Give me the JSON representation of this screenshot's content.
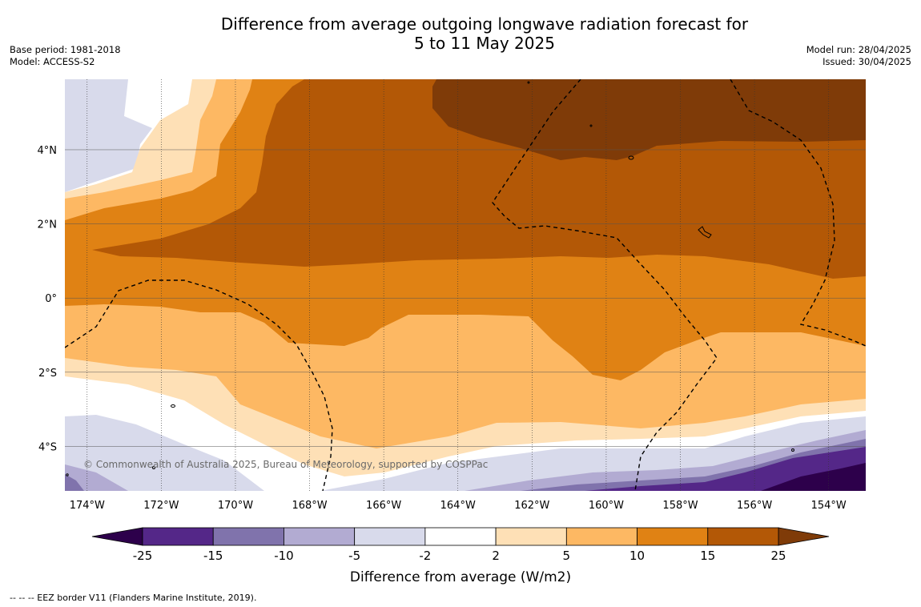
{
  "title": {
    "line1": "Difference from average outgoing longwave radiation forecast for",
    "line2": "5 to 11 May 2025"
  },
  "meta_left": {
    "base_period": "Base period: 1981-2018",
    "model": "Model: ACCESS-S2"
  },
  "meta_right": {
    "model_run": "Model run: 28/04/2025",
    "issued": "Issued: 30/04/2025"
  },
  "copyright": "© Commonwealth of Australia 2025, Bureau of Meteorology, supported by COSPPac",
  "footer": "--  --  -- EEZ border V11 (Flanders Marine Institute, 2019).",
  "map": {
    "lon_range": [
      -174.6,
      -153.0
    ],
    "lat_range": [
      -5.2,
      5.9
    ],
    "lon_ticks": [
      {
        "value": -174,
        "label": "174°W"
      },
      {
        "value": -172,
        "label": "172°W"
      },
      {
        "value": -170,
        "label": "170°W"
      },
      {
        "value": -168,
        "label": "168°W"
      },
      {
        "value": -166,
        "label": "166°W"
      },
      {
        "value": -164,
        "label": "164°W"
      },
      {
        "value": -162,
        "label": "162°W"
      },
      {
        "value": -160,
        "label": "160°W"
      },
      {
        "value": -158,
        "label": "158°W"
      },
      {
        "value": -156,
        "label": "156°W"
      },
      {
        "value": -154,
        "label": "154°W"
      }
    ],
    "lat_ticks": [
      {
        "value": 4,
        "label": "4°N"
      },
      {
        "value": 2,
        "label": "2°N"
      },
      {
        "value": 0,
        "label": "0°"
      },
      {
        "value": -2,
        "label": "2°S"
      },
      {
        "value": -4,
        "label": "4°S"
      }
    ]
  },
  "colorbar": {
    "label": "Difference from average (W/m2)",
    "bins": [
      {
        "from": -25,
        "to": -15,
        "color": "#542788"
      },
      {
        "from": -15,
        "to": -10,
        "color": "#8073ac"
      },
      {
        "from": -10,
        "to": -5,
        "color": "#b2abd2"
      },
      {
        "from": -5,
        "to": -2,
        "color": "#d8daeb"
      },
      {
        "from": -2,
        "to": 2,
        "color": "#ffffff"
      },
      {
        "from": 2,
        "to": 5,
        "color": "#fee0b6"
      },
      {
        "from": 5,
        "to": 10,
        "color": "#fdb863"
      },
      {
        "from": 10,
        "to": 15,
        "color": "#e08214"
      },
      {
        "from": 15,
        "to": 25,
        "color": "#b35806"
      }
    ],
    "below_color": "#2d004b",
    "above_color": "#7f3b08",
    "tick_labels": [
      "-25",
      "-15",
      "-10",
      "-5",
      "-2",
      "2",
      "5",
      "10",
      "15",
      "25"
    ]
  }
}
